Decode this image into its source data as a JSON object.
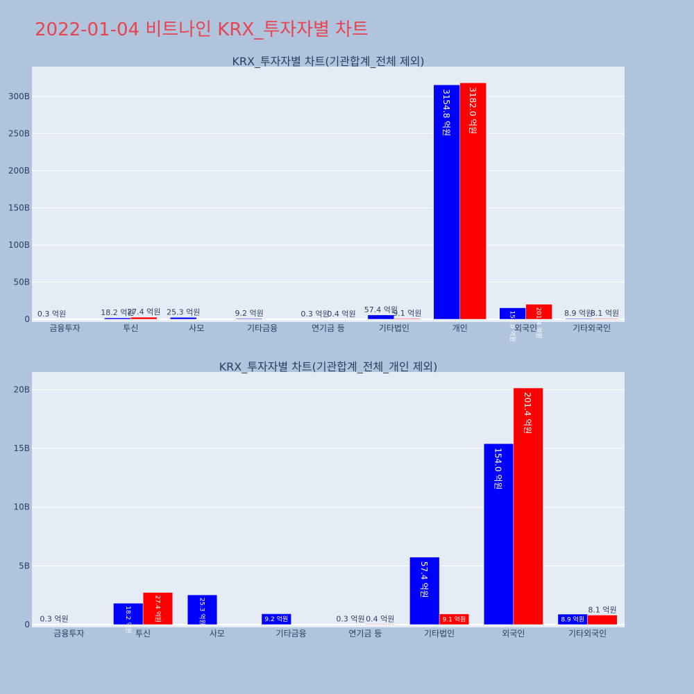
{
  "title": "2022-01-04 비트나인 KRX_투자자별 차트",
  "colors": {
    "series_a": "#0000ff",
    "series_b": "#ff0000",
    "plot_bg": "#e5ecf6",
    "page_bg": "#b0c4de",
    "title": "#e8434e"
  },
  "chart_data": [
    {
      "type": "bar",
      "title": "KRX_투자자별 차트(기관합계_전체 제외)",
      "categories": [
        "금융투자",
        "투신",
        "사모",
        "기타금융",
        "연기금 등",
        "기타법인",
        "개인",
        "외국인",
        "기타외국인"
      ],
      "series": [
        {
          "values": [
            0.03,
            1.82,
            2.53,
            0.92,
            0.03,
            5.74,
            315.48,
            15.4,
            0.89
          ],
          "labels": [
            "0.3 억원",
            "18.2 억원",
            "25.3 억원",
            "9.2 억원",
            "0.3 억원",
            "57.4 억원",
            "3154.8 억원",
            "154.0 억원",
            "8.9 억원"
          ]
        },
        {
          "values": [
            0,
            2.74,
            0,
            0,
            0.04,
            0.91,
            318.2,
            20.14,
            0.81
          ],
          "labels": [
            "",
            "27.4 억원",
            "",
            "",
            "0.4 억원",
            "9.1 억원",
            "3182.0 억원",
            "201.4 억원",
            "8.1 억원"
          ]
        }
      ],
      "yticks": [
        "0",
        "50B",
        "100B",
        "150B",
        "200B",
        "250B",
        "300B"
      ],
      "ytick_values": [
        0,
        50,
        100,
        150,
        200,
        250,
        300
      ],
      "ylim": [
        0,
        340
      ],
      "xlabel": "",
      "ylabel": "",
      "grid": true
    },
    {
      "type": "bar",
      "title": "KRX_투자자별 차트(기관합계_전체_개인 제외)",
      "categories": [
        "금융투자",
        "투신",
        "사모",
        "기타금융",
        "연기금 등",
        "기타법인",
        "외국인",
        "기타외국인"
      ],
      "series": [
        {
          "values": [
            0.03,
            1.82,
            2.53,
            0.92,
            0.03,
            5.74,
            15.4,
            0.89
          ],
          "labels": [
            "0.3 억원",
            "18.2 억원",
            "25.3 억원",
            "9.2 억원",
            "0.3 억원",
            "57.4 억원",
            "154.0 억원",
            "8.9 억원"
          ]
        },
        {
          "values": [
            0,
            2.74,
            0,
            0,
            0.04,
            0.91,
            20.14,
            0.81
          ],
          "labels": [
            "",
            "27.4 억원",
            "",
            "",
            "0.4 억원",
            "9.1 억원",
            "201.4 억원",
            "8.1 억원"
          ]
        }
      ],
      "yticks": [
        "0",
        "5B",
        "10B",
        "15B",
        "20B"
      ],
      "ytick_values": [
        0,
        5,
        10,
        15,
        20
      ],
      "ylim": [
        0,
        21.5
      ],
      "xlabel": "",
      "ylabel": "",
      "grid": true
    }
  ]
}
